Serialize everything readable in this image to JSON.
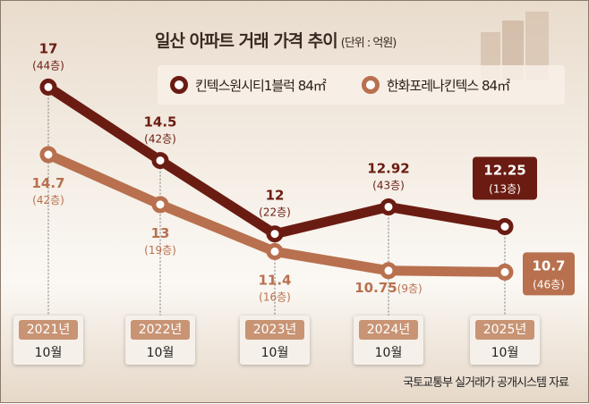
{
  "chart_data": {
    "type": "line",
    "title": "일산 아파트 거래 가격 추이",
    "unit": "(단위 : 억원)",
    "categories": [
      {
        "year": "2021년",
        "month": "10월"
      },
      {
        "year": "2022년",
        "month": "10월"
      },
      {
        "year": "2023년",
        "month": "10월"
      },
      {
        "year": "2024년",
        "month": "10월"
      },
      {
        "year": "2025년",
        "month": "10월"
      }
    ],
    "series": [
      {
        "name": "킨텍스원시티1블럭 84㎡",
        "color": "#6b1c12",
        "values": [
          17,
          14.5,
          12,
          12.92,
          12.25
        ],
        "value_labels": [
          "17",
          "14.5",
          "12",
          "12.92",
          "12.25"
        ],
        "floors": [
          "(44층)",
          "(42층)",
          "(22층)",
          "(43층)",
          "(13층)"
        ]
      },
      {
        "name": "한화포레나킨텍스 84㎡",
        "color": "#b8704e",
        "values": [
          14.7,
          13,
          11.4,
          10.75,
          10.7
        ],
        "value_labels": [
          "14.7",
          "13",
          "11.4",
          "10.75",
          "10.7"
        ],
        "floors": [
          "(42층)",
          "(19층)",
          "(16층)",
          "(9층)",
          "(46층)"
        ]
      }
    ],
    "ylim": [
      10.5,
      17.5
    ]
  },
  "source": "국토교통부 실거래가 공개시스템 자료"
}
